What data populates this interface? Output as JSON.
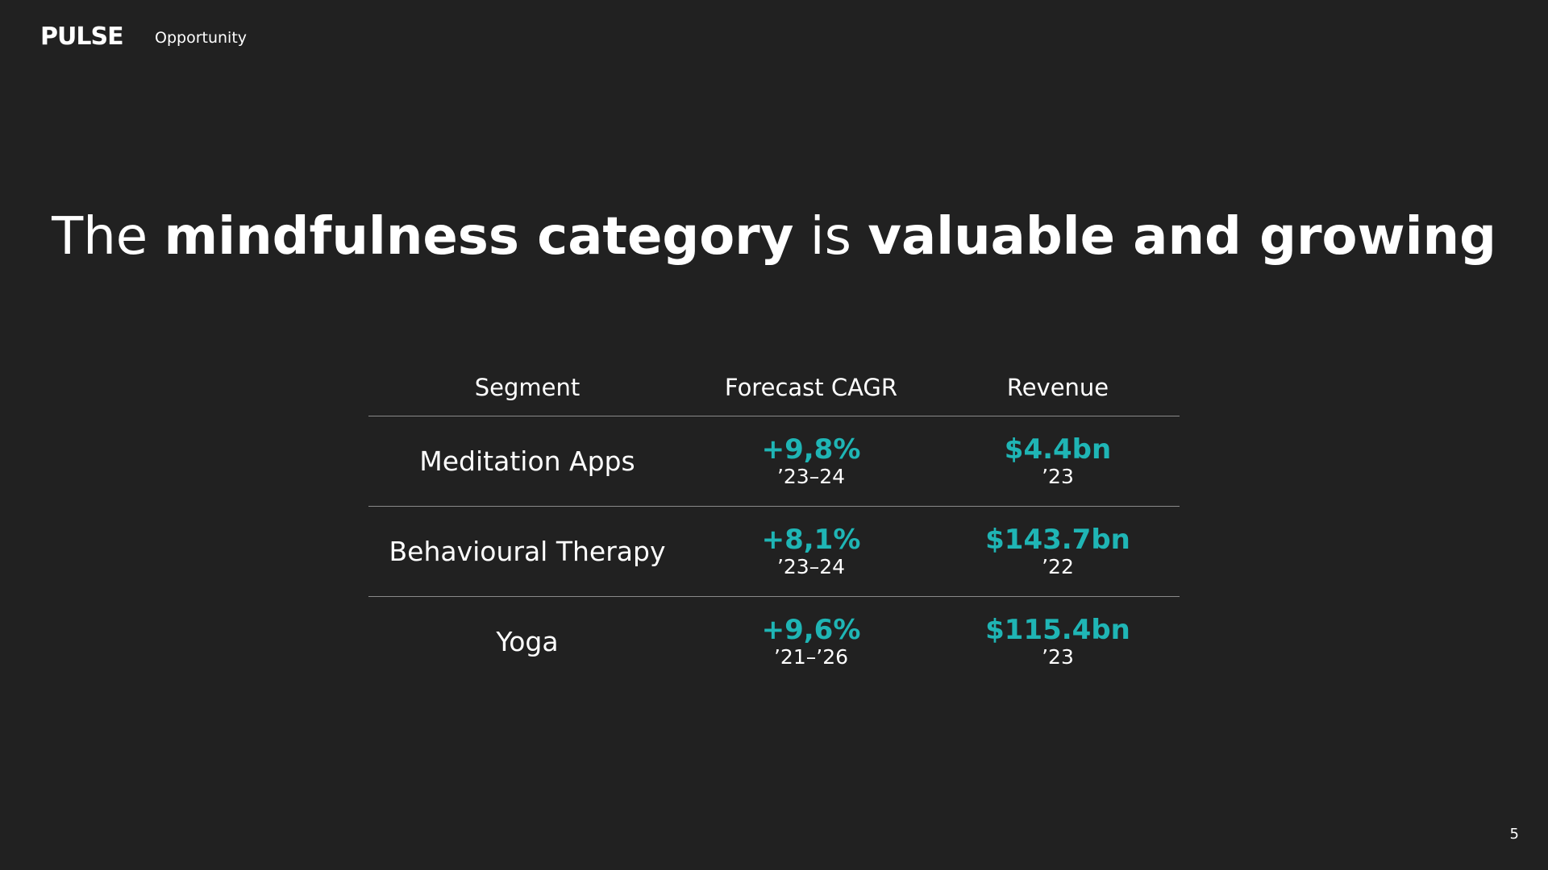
{
  "header": {
    "brand": "PULSE",
    "section": "Opportunity"
  },
  "title": {
    "part1": "The ",
    "part2": "mindfulness category",
    "part3": " is ",
    "part4": "valuable and growing"
  },
  "table": {
    "columns": [
      "Segment",
      "Forecast CAGR",
      "Revenue"
    ],
    "rows": [
      {
        "segment": "Meditation Apps",
        "cagr": "+9,8%",
        "cagr_period": "’23–24",
        "revenue": "$4.4bn",
        "revenue_period": "’23"
      },
      {
        "segment": "Behavioural Therapy",
        "cagr": "+8,1%",
        "cagr_period": "’23–24",
        "revenue": "$143.7bn",
        "revenue_period": "’22"
      },
      {
        "segment": "Yoga",
        "cagr": "+9,6%",
        "cagr_period": "’21–’26",
        "revenue": "$115.4bn",
        "revenue_period": "’23"
      }
    ]
  },
  "colors": {
    "background": "#212121",
    "accent": "#1fb5b5",
    "text": "#ffffff",
    "divider": "#8a8a8a"
  },
  "footer": {
    "page_number": "5"
  }
}
